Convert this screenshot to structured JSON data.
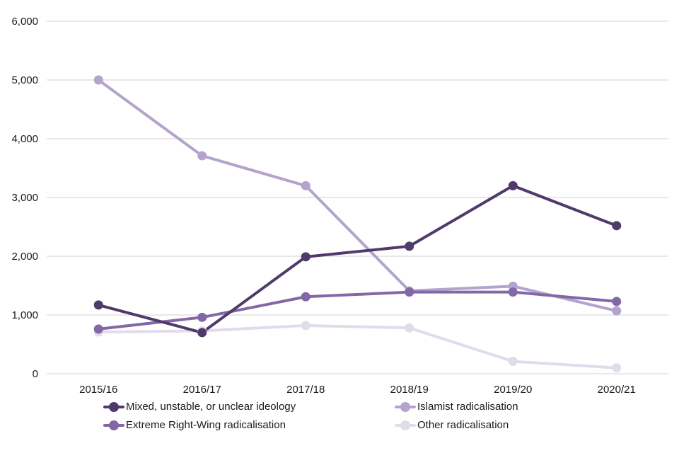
{
  "chart_data": {
    "type": "line",
    "title": "",
    "xlabel": "",
    "ylabel": "",
    "categories": [
      "2015/16",
      "2016/17",
      "2017/18",
      "2018/19",
      "2019/20",
      "2020/21"
    ],
    "ylim": [
      0,
      6000
    ],
    "yticks": [
      0,
      1000,
      2000,
      3000,
      4000,
      5000,
      6000
    ],
    "ytick_labels": [
      "0",
      "1,000",
      "2,000",
      "3,000",
      "4,000",
      "5,000",
      "6,000"
    ],
    "grid": true,
    "legend_position": "bottom",
    "series": [
      {
        "name": "Mixed, unstable, or unclear ideology",
        "color": "#4f3a6b",
        "values": [
          1170,
          700,
          1990,
          2170,
          3200,
          2520
        ]
      },
      {
        "name": "Islamist radicalisation",
        "color": "#b3a3cd",
        "values": [
          5000,
          3710,
          3200,
          1410,
          1490,
          1070
        ]
      },
      {
        "name": "Extreme Right-Wing radicalisation",
        "color": "#8467a6",
        "values": [
          760,
          960,
          1310,
          1390,
          1390,
          1230
        ]
      },
      {
        "name": "Other radicalisation",
        "color": "#e1dbea",
        "values": [
          710,
          730,
          820,
          780,
          210,
          100
        ]
      }
    ],
    "gridline_color": "#d9d9d9"
  }
}
